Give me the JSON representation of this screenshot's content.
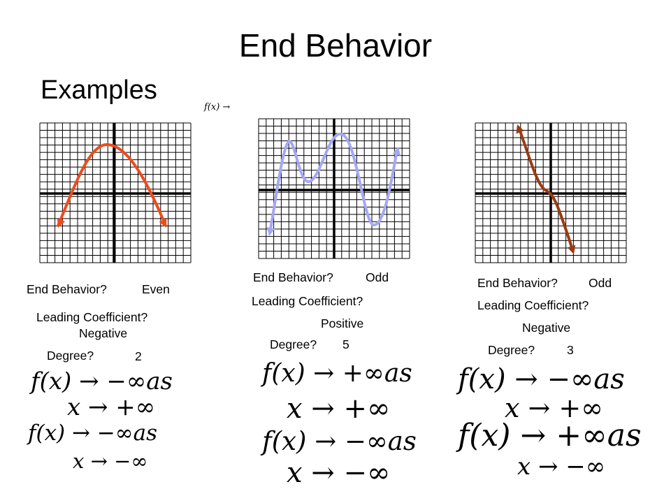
{
  "title": "End Behavior",
  "subtitle": "Examples",
  "header_math": "f(x) →",
  "examples": [
    {
      "end_behavior_label": "End Behavior?",
      "end_behavior_value": "Even",
      "leading_coeff_label": "Leading Coefficient?",
      "leading_coeff_value": "Negative",
      "degree_label": "Degree?",
      "degree_value": "2",
      "right_f": "f(x) → −∞as",
      "right_x": "x → +∞",
      "left_f": "f(x) → −∞as",
      "left_x": "x → −∞",
      "curve_color": "#ee4b1a"
    },
    {
      "end_behavior_label": "End Behavior?",
      "end_behavior_value": "Odd",
      "leading_coeff_label": "Leading Coefficient?",
      "leading_coeff_value": "Positive",
      "degree_label": "Degree?",
      "degree_value": "5",
      "right_f": "f(x) → +∞as",
      "right_x": "x → +∞",
      "left_f": "f(x) → −∞as",
      "left_x": "x → −∞",
      "curve_color": "#a4a8f4"
    },
    {
      "end_behavior_label": "End Behavior?",
      "end_behavior_value": "Odd",
      "leading_coeff_label": "Leading Coefficient?",
      "leading_coeff_value": "Negative",
      "degree_label": "Degree?",
      "degree_value": "3",
      "right_f": "f(x) → −∞as",
      "right_x": "x → +∞",
      "left_f": "f(x) → +∞as",
      "left_x": "x → −∞",
      "curve_color": "#9a3a12"
    }
  ]
}
